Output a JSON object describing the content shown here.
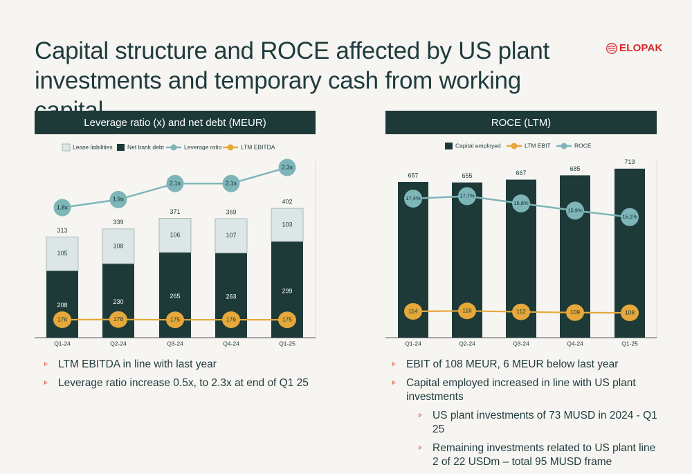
{
  "title": "Capital structure and ROCE affected by US plant investments and temporary cash from working capital",
  "logo": {
    "text": "ELOPAK"
  },
  "left_panel": {
    "header": "Leverage ratio (x) and net debt (MEUR)",
    "legend": [
      "Lease liabilities",
      "Net bank debt",
      "Leverage ratio",
      "LTM EBITDA"
    ]
  },
  "right_panel": {
    "header": "ROCE (LTM)",
    "legend": [
      "Capital employed",
      "LTM EBIT",
      "ROCE"
    ]
  },
  "colors": {
    "dark": "#1d3a39",
    "light": "#dde6e6",
    "teal": "#7eb5b9",
    "gold": "#e6a83a",
    "accent_red": "#d42a2a"
  },
  "chart_data": [
    {
      "type": "bar",
      "title": "Leverage ratio (x) and net debt (MEUR)",
      "categories": [
        "Q1-24",
        "Q2-24",
        "Q3-24",
        "Q4-24",
        "Q1-25"
      ],
      "series": [
        {
          "name": "Net bank debt",
          "kind": "stacked-bar",
          "values": [
            208,
            230,
            265,
            263,
            299
          ]
        },
        {
          "name": "Lease liabilities",
          "kind": "stacked-bar",
          "values": [
            105,
            108,
            106,
            107,
            103
          ]
        },
        {
          "name": "Leverage ratio",
          "kind": "line",
          "values": [
            1.8,
            1.9,
            2.1,
            2.1,
            2.3
          ],
          "labels": [
            "1.8x",
            "1.9x",
            "2.1x",
            "2.1x",
            "2.3x"
          ]
        },
        {
          "name": "LTM EBITDA",
          "kind": "line",
          "values": [
            176,
            178,
            175,
            176,
            175
          ]
        }
      ],
      "totals": [
        313,
        339,
        371,
        369,
        402
      ],
      "ylim": [
        0,
        440
      ],
      "grid": false,
      "legend_position": "top"
    },
    {
      "type": "bar",
      "title": "ROCE (LTM)",
      "categories": [
        "Q1-24",
        "Q2-24",
        "Q3-24",
        "Q4-24",
        "Q1-25"
      ],
      "series": [
        {
          "name": "Capital employed",
          "kind": "bar",
          "values": [
            657,
            655,
            667,
            685,
            713
          ]
        },
        {
          "name": "LTM EBIT",
          "kind": "line",
          "values": [
            114,
            116,
            112,
            109,
            108
          ]
        },
        {
          "name": "ROCE",
          "kind": "line",
          "values": [
            17.4,
            17.7,
            16.8,
            15.9,
            15.1
          ],
          "labels": [
            "17,4%",
            "17,7%",
            "16,8%",
            "15,9%",
            "15,1%"
          ]
        }
      ],
      "ylim": [
        0,
        790
      ],
      "grid": false,
      "legend_position": "top"
    }
  ],
  "bullets_left": [
    "LTM EBITDA in line with last year",
    "Leverage ratio increase 0.5x, to 2.3x at end of Q1 25"
  ],
  "bullets_right": [
    "EBIT of 108 MEUR, 6 MEUR below last year",
    "Capital employed increased in line with US plant investments"
  ],
  "bullets_right_sub": [
    "US plant investments of 73 MUSD in 2024 - Q1 25",
    "Remaining investments related to US plant line 2 of 22 USDm – total 95 MUSD frame"
  ]
}
